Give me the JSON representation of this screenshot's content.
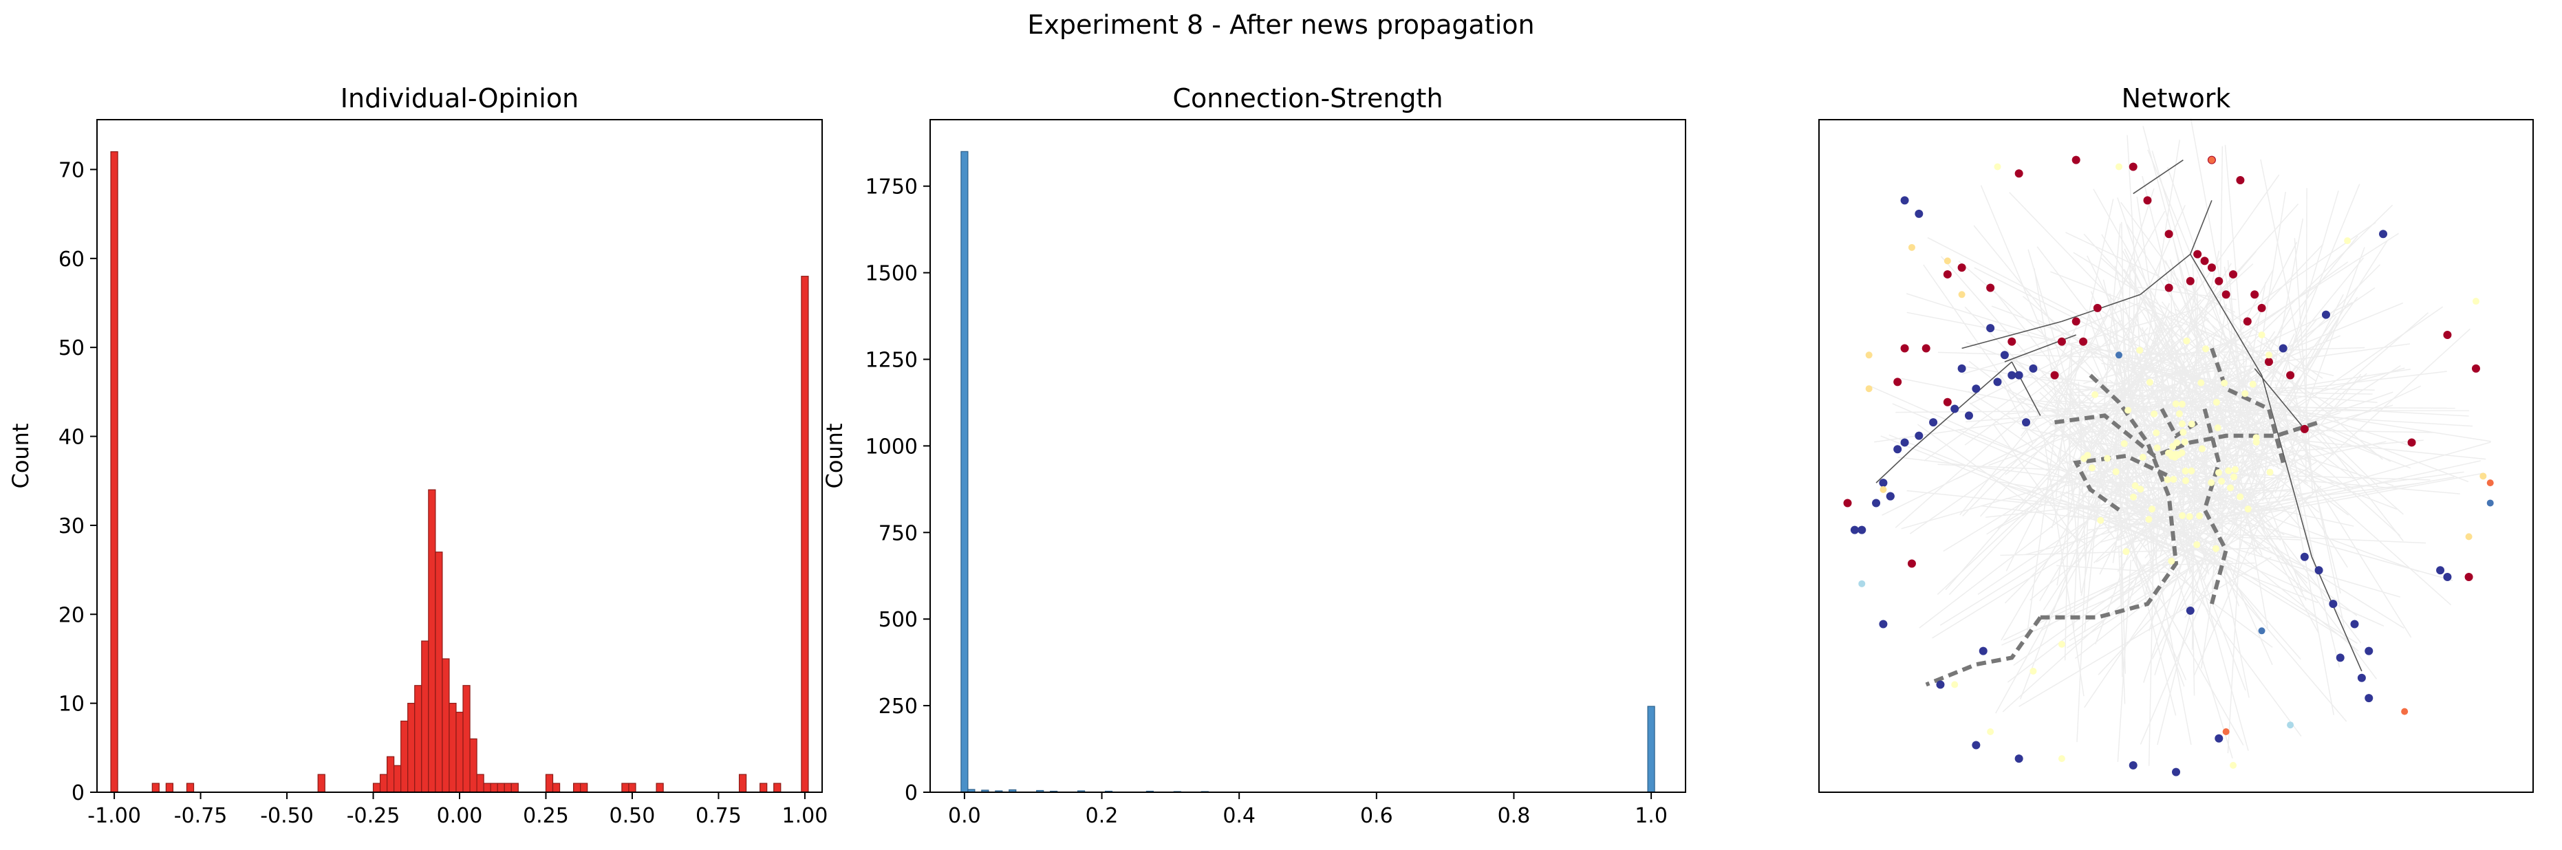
{
  "figure": {
    "suptitle": "Experiment 8 - After news propagation"
  },
  "chart_data": [
    {
      "type": "bar",
      "title": "Individual-Opinion",
      "xlabel": "",
      "ylabel": "Count",
      "xlim": [
        -1.05,
        1.05
      ],
      "ylim": [
        0,
        75.6
      ],
      "xticks": [
        "-1.00",
        "-0.75",
        "-0.50",
        "-0.25",
        "0.00",
        "0.25",
        "0.50",
        "0.75",
        "1.00"
      ],
      "xtick_values": [
        -1.0,
        -0.75,
        -0.5,
        -0.25,
        0.0,
        0.25,
        0.5,
        0.75,
        1.0
      ],
      "yticks": [
        "0",
        "10",
        "20",
        "30",
        "40",
        "50",
        "60",
        "70"
      ],
      "ytick_values": [
        0,
        10,
        20,
        30,
        40,
        50,
        60,
        70
      ],
      "bin_width": 0.02,
      "color": "#e8302a",
      "edgecolor": "#8b1a16",
      "bins": [
        [
          -1.0,
          72
        ],
        [
          -0.88,
          1
        ],
        [
          -0.84,
          1
        ],
        [
          -0.78,
          1
        ],
        [
          -0.4,
          2
        ],
        [
          -0.24,
          1
        ],
        [
          -0.22,
          2
        ],
        [
          -0.2,
          4
        ],
        [
          -0.18,
          3
        ],
        [
          -0.16,
          8
        ],
        [
          -0.14,
          10
        ],
        [
          -0.12,
          12
        ],
        [
          -0.1,
          17
        ],
        [
          -0.08,
          34
        ],
        [
          -0.06,
          27
        ],
        [
          -0.04,
          15
        ],
        [
          -0.02,
          10
        ],
        [
          0.0,
          9
        ],
        [
          0.02,
          12
        ],
        [
          0.04,
          6
        ],
        [
          0.06,
          2
        ],
        [
          0.08,
          1
        ],
        [
          0.1,
          1
        ],
        [
          0.12,
          1
        ],
        [
          0.14,
          1
        ],
        [
          0.16,
          1
        ],
        [
          0.26,
          2
        ],
        [
          0.28,
          1
        ],
        [
          0.34,
          1
        ],
        [
          0.36,
          1
        ],
        [
          0.48,
          1
        ],
        [
          0.5,
          1
        ],
        [
          0.58,
          1
        ],
        [
          0.82,
          2
        ],
        [
          0.88,
          1
        ],
        [
          0.92,
          1
        ],
        [
          1.0,
          58
        ]
      ]
    },
    {
      "type": "bar",
      "title": "Connection-Strength",
      "xlabel": "",
      "ylabel": "Count",
      "xlim": [
        -0.05,
        1.05
      ],
      "ylim": [
        0,
        1942
      ],
      "xticks": [
        "0.0",
        "0.2",
        "0.4",
        "0.6",
        "0.8",
        "1.0"
      ],
      "xtick_values": [
        0.0,
        0.2,
        0.4,
        0.6,
        0.8,
        1.0
      ],
      "yticks": [
        "0",
        "250",
        "500",
        "750",
        "1000",
        "1250",
        "1500",
        "1750"
      ],
      "ytick_values": [
        0,
        250,
        500,
        750,
        1000,
        1250,
        1500,
        1750
      ],
      "bin_width": 0.01,
      "color": "#4a90c8",
      "edgecolor": "#2c5f8a",
      "bins": [
        [
          0.0,
          1850
        ],
        [
          0.01,
          8
        ],
        [
          0.03,
          6
        ],
        [
          0.05,
          4
        ],
        [
          0.07,
          7
        ],
        [
          0.11,
          5
        ],
        [
          0.13,
          3
        ],
        [
          0.17,
          4
        ],
        [
          0.21,
          3
        ],
        [
          0.27,
          3
        ],
        [
          0.31,
          2
        ],
        [
          0.35,
          2
        ],
        [
          1.0,
          248
        ]
      ]
    },
    {
      "type": "network",
      "title": "Network",
      "colormap": [
        "#313695",
        "#4575b4",
        "#abd9e9",
        "#ffffbf",
        "#fee090",
        "#fdae61",
        "#f46d43",
        "#a50026"
      ],
      "edge_colors": {
        "strong": "#555555",
        "dashed": "#777777",
        "faint": "#e6e6e6"
      }
    }
  ]
}
